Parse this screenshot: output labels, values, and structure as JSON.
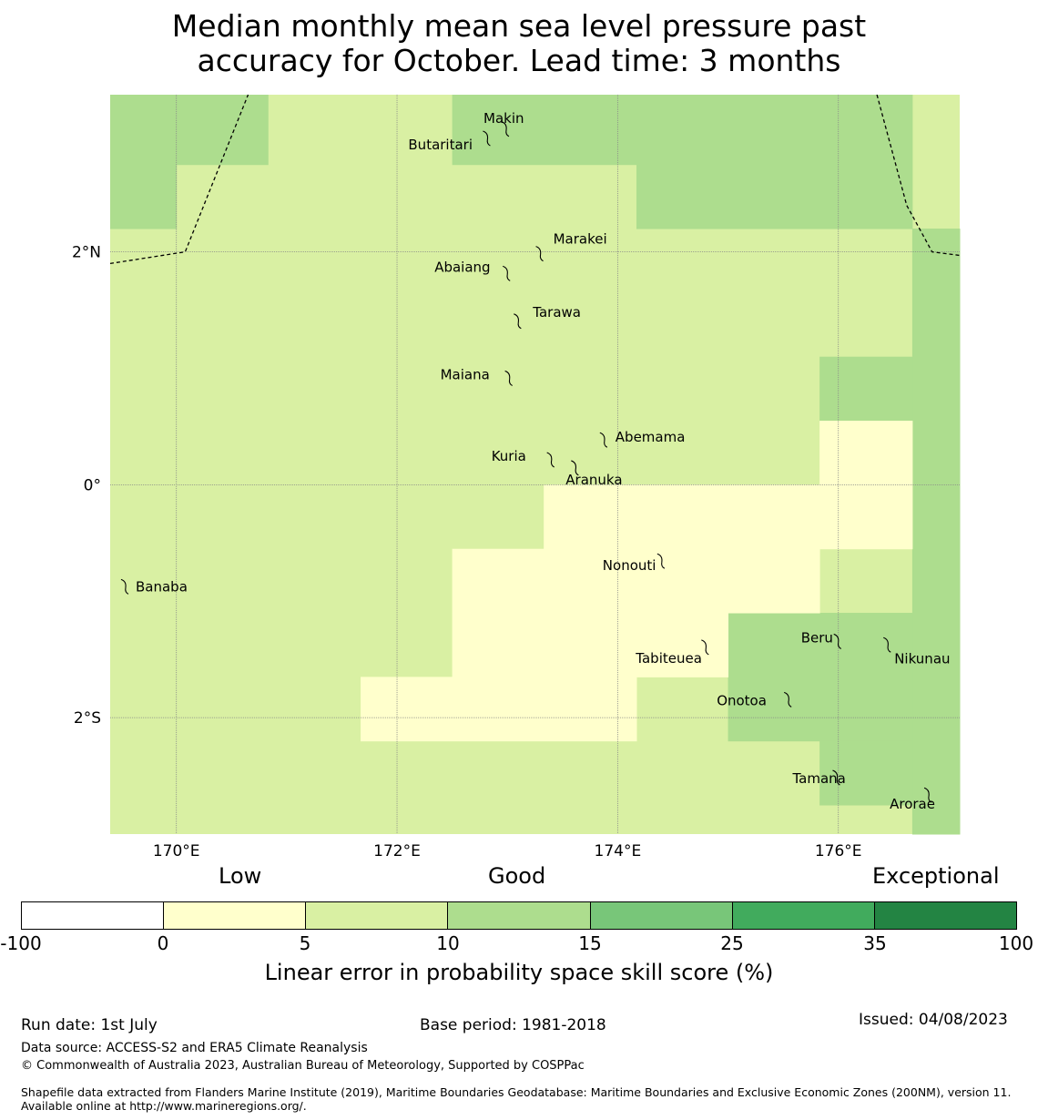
{
  "title": {
    "line1": "Median monthly mean sea level pressure past",
    "line2": "accuracy for October. Lead time: 3 months"
  },
  "map": {
    "lon_range": [
      169.4,
      177.1
    ],
    "lat_range": [
      -3.0,
      3.35
    ],
    "x_ticks": [
      {
        "lon": 170,
        "label": "170°E"
      },
      {
        "lon": 172,
        "label": "172°E"
      },
      {
        "lon": 174,
        "label": "174°E"
      },
      {
        "lon": 176,
        "label": "176°E"
      }
    ],
    "y_ticks": [
      {
        "lat": 2,
        "label": "2°N"
      },
      {
        "lat": 0,
        "label": "0°"
      },
      {
        "lat": -2,
        "label": "2°S"
      }
    ],
    "colors": {
      "below_0": "#ffffff",
      "0_5": "#ffffcc",
      "5_10": "#d9f0a3",
      "10_15": "#addd8e",
      "15_25": "#78c679",
      "25_35": "#41ab5d",
      "35_100": "#238443"
    },
    "skill_blocks": [
      {
        "lon": [
          169.4,
          170.0
        ],
        "lat": [
          2.2,
          3.35
        ],
        "cat": "10_15"
      },
      {
        "lon": [
          170.0,
          170.83
        ],
        "lat": [
          2.75,
          3.35
        ],
        "cat": "10_15"
      },
      {
        "lon": [
          172.5,
          174.17
        ],
        "lat": [
          2.75,
          3.35
        ],
        "cat": "10_15"
      },
      {
        "lon": [
          174.17,
          176.67
        ],
        "lat": [
          2.2,
          3.35
        ],
        "cat": "10_15"
      },
      {
        "lon": [
          176.67,
          177.1
        ],
        "lat": [
          -3.0,
          2.2
        ],
        "cat": "10_15"
      },
      {
        "lon": [
          175.83,
          176.67
        ],
        "lat": [
          0.55,
          1.1
        ],
        "cat": "10_15"
      },
      {
        "lon": [
          175.0,
          176.67
        ],
        "lat": [
          -2.2,
          -1.1
        ],
        "cat": "10_15"
      },
      {
        "lon": [
          175.83,
          176.67
        ],
        "lat": [
          -2.75,
          -2.2
        ],
        "cat": "10_15"
      },
      {
        "lon": [
          175.83,
          176.67
        ],
        "lat": [
          0.0,
          0.55
        ],
        "cat": "0_5"
      },
      {
        "lon": [
          173.33,
          176.67
        ],
        "lat": [
          -0.55,
          0.0
        ],
        "cat": "0_5"
      },
      {
        "lon": [
          172.5,
          175.83
        ],
        "lat": [
          -1.1,
          -0.55
        ],
        "cat": "0_5"
      },
      {
        "lon": [
          172.5,
          175.0
        ],
        "lat": [
          -1.65,
          -1.1
        ],
        "cat": "0_5"
      },
      {
        "lon": [
          171.67,
          174.17
        ],
        "lat": [
          -2.2,
          -1.65
        ],
        "cat": "0_5"
      }
    ],
    "boundary_lines": [
      [
        [
          169.4,
          1.9
        ],
        [
          170.08,
          2.0
        ],
        [
          170.65,
          3.35
        ]
      ],
      [
        [
          176.35,
          3.35
        ],
        [
          176.62,
          2.4
        ],
        [
          176.85,
          2.0
        ],
        [
          177.1,
          1.97
        ]
      ]
    ],
    "islands": [
      {
        "name": "Makin",
        "lon": 172.99,
        "lat": 3.07
      },
      {
        "name": "Butaritari",
        "lon": 172.82,
        "lat": 2.99
      },
      {
        "name": "Marakei",
        "lon": 173.3,
        "lat": 2.0
      },
      {
        "name": "Abaiang",
        "lon": 173.0,
        "lat": 1.83
      },
      {
        "name": "Tarawa",
        "lon": 173.1,
        "lat": 1.42
      },
      {
        "name": "Maiana",
        "lon": 173.02,
        "lat": 0.93
      },
      {
        "name": "Abemama",
        "lon": 173.88,
        "lat": 0.4
      },
      {
        "name": "Kuria",
        "lon": 173.4,
        "lat": 0.23
      },
      {
        "name": "Aranuka",
        "lon": 173.62,
        "lat": 0.16
      },
      {
        "name": "Nonouti",
        "lon": 174.4,
        "lat": -0.64
      },
      {
        "name": "Tabiteuea",
        "lon": 174.8,
        "lat": -1.38
      },
      {
        "name": "Beru",
        "lon": 176.0,
        "lat": -1.33
      },
      {
        "name": "Nikunau",
        "lon": 176.45,
        "lat": -1.36
      },
      {
        "name": "Onotoa",
        "lon": 175.55,
        "lat": -1.83
      },
      {
        "name": "Tamana",
        "lon": 175.99,
        "lat": -2.5
      },
      {
        "name": "Arorae",
        "lon": 176.82,
        "lat": -2.65
      },
      {
        "name": "Banaba",
        "lon": 169.54,
        "lat": -0.86
      }
    ]
  },
  "legend": {
    "categories": [
      "Low",
      "Good",
      "Exceptional"
    ],
    "ticks": [
      "-100",
      "0",
      "5",
      "10",
      "15",
      "25",
      "35",
      "100"
    ],
    "label": "Linear error in probability space skill score (%)",
    "bins": [
      "below_0",
      "0_5",
      "5_10",
      "10_15",
      "15_25",
      "25_35",
      "35_100"
    ]
  },
  "footer": {
    "run_date": "Run date: 1st July",
    "base_period": "Base period: 1981-2018",
    "issued": "Issued: 04/08/2023",
    "data_source": "Data source: ACCESS-S2 and ERA5 Climate Reanalysis",
    "copyright": "© Commonwealth of Australia 2023, Australian Bureau of Meteorology, Supported by COSPPac",
    "shapefile": "Shapefile data extracted from Flanders Marine Institute (2019), Maritime Boundaries Geodatabase: Maritime Boundaries and Exclusive Economic Zones (200NM), version 11. Available online at http://www.marineregions.org/."
  }
}
